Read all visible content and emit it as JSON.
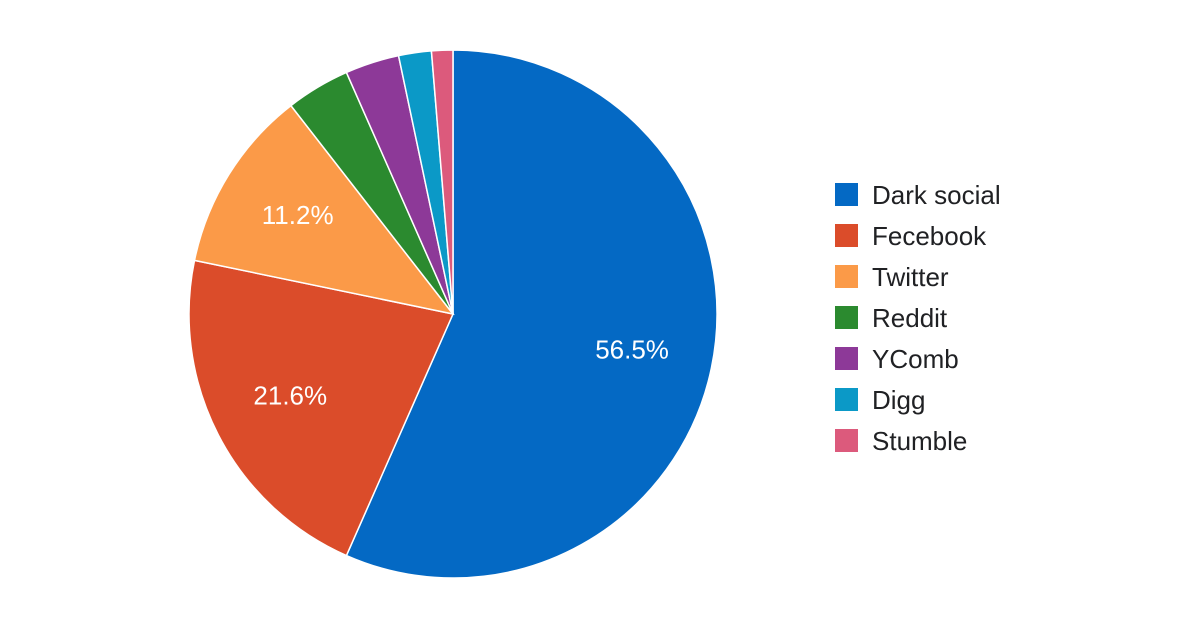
{
  "chart_data": {
    "type": "pie",
    "title": "",
    "legend_position": "right",
    "series": [
      {
        "name": "",
        "categories": [
          "Dark social",
          "Fecebook",
          "Twitter",
          "Reddit",
          "YComb",
          "Digg",
          "Stumble"
        ],
        "values": [
          56.5,
          21.6,
          11.2,
          3.9,
          3.3,
          2.0,
          1.3
        ],
        "colors": [
          "#0469c4",
          "#db4c2a",
          "#fb9a48",
          "#2b8a2f",
          "#8d3998",
          "#0b99c7",
          "#dc5a7c"
        ],
        "data_labels": [
          "56.5%",
          "21.6%",
          "11.2%",
          "",
          "",
          "",
          ""
        ]
      }
    ]
  }
}
